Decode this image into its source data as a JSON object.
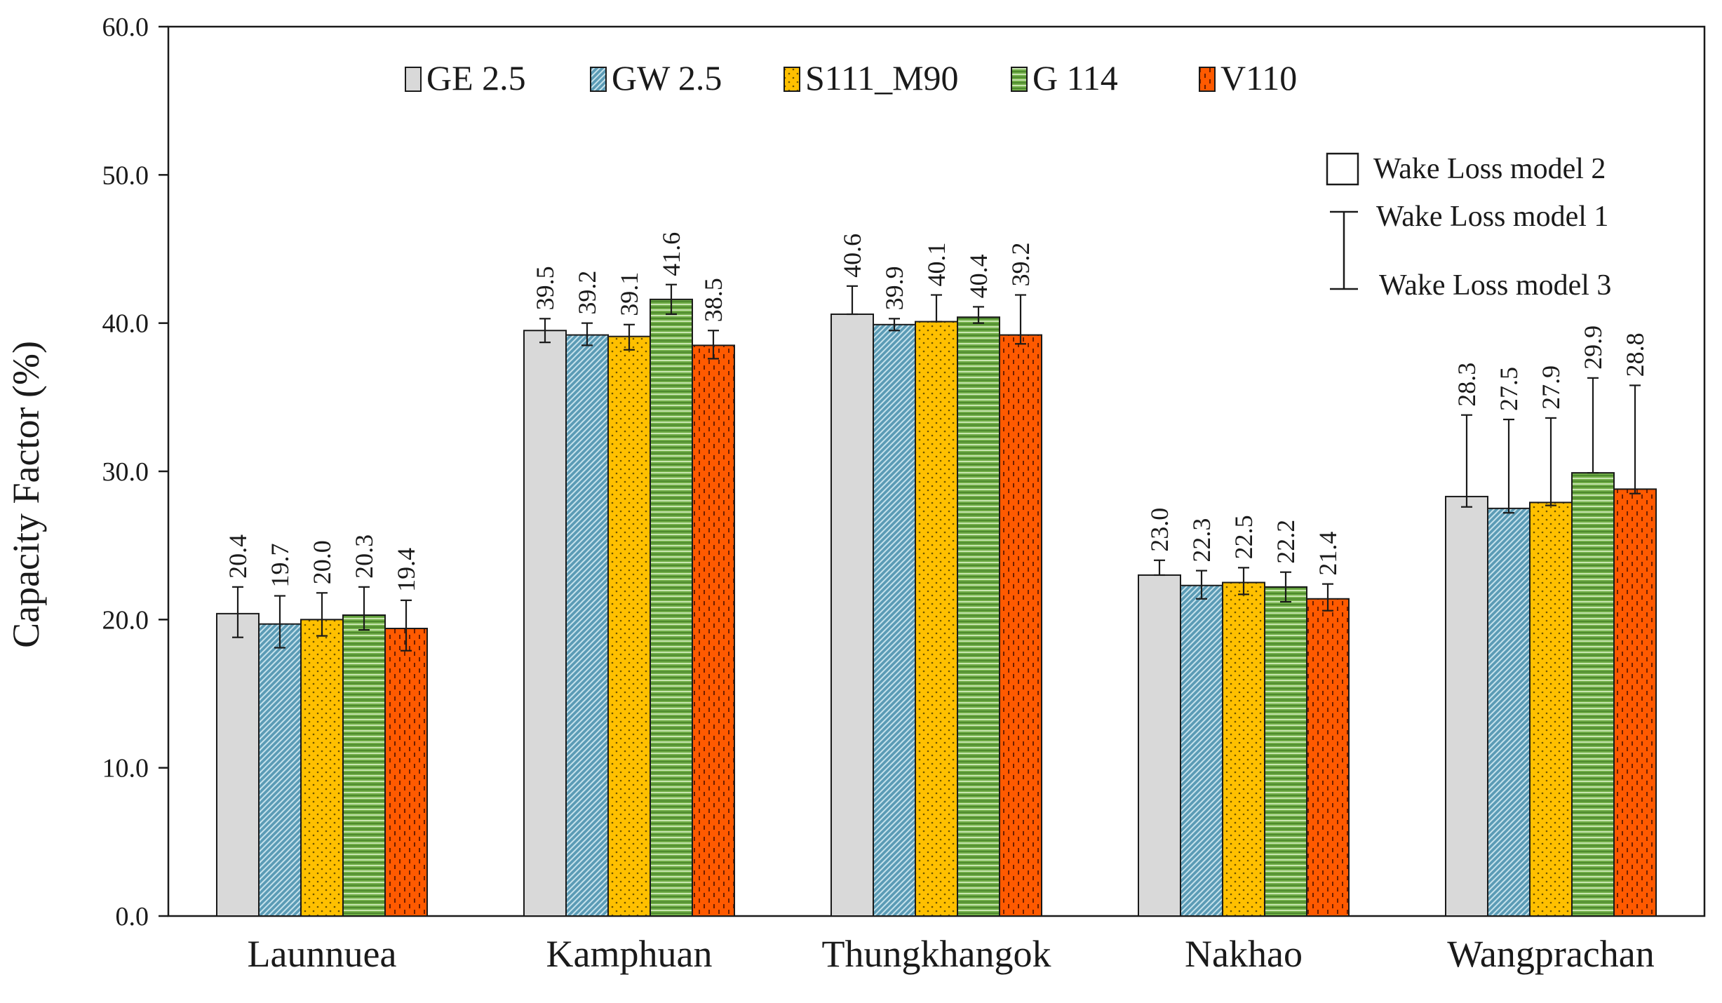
{
  "chart_data": {
    "type": "bar",
    "xlabel": "",
    "ylabel": "Capacity Factor (%)",
    "ylim": [
      0,
      60
    ],
    "ytick_step": 10,
    "ytick_decimals": 1,
    "grid": false,
    "legend_position": "top",
    "categories": [
      "Launnuea",
      "Kamphuan",
      "Thungkhangok",
      "Nakhao",
      "Wangprachan"
    ],
    "series": [
      {
        "name": "GE 2.5",
        "color": "#d9d9d9",
        "pattern": "solid",
        "values": [
          20.4,
          39.5,
          40.6,
          23.0,
          28.3
        ],
        "model1": [
          22.2,
          40.3,
          42.5,
          24.0,
          33.8
        ],
        "model3": [
          18.8,
          38.7,
          40.6,
          23.0,
          27.6
        ]
      },
      {
        "name": "GW 2.5",
        "color": "#5b9bb5",
        "pattern": "diagonal",
        "values": [
          19.7,
          39.2,
          39.9,
          22.3,
          27.5
        ],
        "model1": [
          21.6,
          40.0,
          40.3,
          23.3,
          33.5
        ],
        "model3": [
          18.1,
          38.5,
          39.5,
          21.4,
          27.2
        ]
      },
      {
        "name": "S111_M90",
        "color": "#ffc000",
        "pattern": "dots",
        "values": [
          20.0,
          39.1,
          40.1,
          22.5,
          27.9
        ],
        "model1": [
          21.8,
          39.9,
          41.9,
          23.5,
          33.6
        ],
        "model3": [
          18.9,
          38.2,
          40.1,
          21.7,
          27.7
        ]
      },
      {
        "name": "G 114",
        "color": "#70ad47",
        "pattern": "horizontal",
        "values": [
          20.3,
          41.6,
          40.4,
          22.2,
          29.9
        ],
        "model1": [
          22.2,
          42.6,
          41.1,
          23.2,
          36.3
        ],
        "model3": [
          19.3,
          40.6,
          40.0,
          21.2,
          29.9
        ]
      },
      {
        "name": "V110",
        "color": "#ff5a00",
        "pattern": "dashes",
        "values": [
          19.4,
          38.5,
          39.2,
          21.4,
          28.8
        ],
        "model1": [
          21.3,
          39.5,
          41.9,
          22.4,
          35.8
        ],
        "model3": [
          17.9,
          37.6,
          38.6,
          20.6,
          28.5
        ]
      }
    ],
    "error_key": {
      "box_label": "Wake Loss model 2",
      "upper_label": "Wake Loss model 1",
      "lower_label": "Wake Loss model 3"
    }
  }
}
